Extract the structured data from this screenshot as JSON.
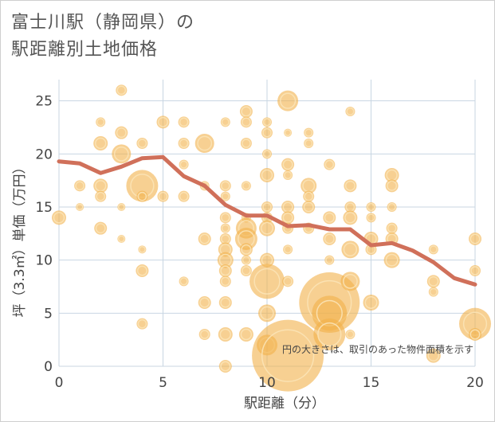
{
  "chart_data": {
    "type": "scatter",
    "title_line1": "富士川駅（静岡県）の",
    "title_line2": "駅距離別土地価格",
    "xlabel": "駅距離（分）",
    "ylabel": "坪（3.3㎡）単価（万円）",
    "note": "円の大きさは、取引のあった物件面積を示す",
    "xlim": [
      0,
      20
    ],
    "ylim": [
      0,
      27
    ],
    "xticks": [
      0,
      5,
      10,
      15,
      20
    ],
    "yticks": [
      0,
      5,
      10,
      15,
      20,
      25
    ],
    "grid": true,
    "colors": {
      "bubble": "#f2b04a",
      "line": "#d0705a",
      "grid": "#c8d6e2"
    },
    "bubbles": [
      {
        "x": 0,
        "y": 14,
        "s": 9
      },
      {
        "x": 1,
        "y": 17,
        "s": 7
      },
      {
        "x": 1,
        "y": 15,
        "s": 5
      },
      {
        "x": 2,
        "y": 23,
        "s": 6
      },
      {
        "x": 2,
        "y": 21,
        "s": 9
      },
      {
        "x": 2,
        "y": 17,
        "s": 9
      },
      {
        "x": 2,
        "y": 16,
        "s": 7
      },
      {
        "x": 2,
        "y": 13,
        "s": 8
      },
      {
        "x": 3,
        "y": 26,
        "s": 7
      },
      {
        "x": 3,
        "y": 22,
        "s": 8
      },
      {
        "x": 3,
        "y": 20,
        "s": 12
      },
      {
        "x": 3,
        "y": 15,
        "s": 5
      },
      {
        "x": 3,
        "y": 12,
        "s": 5
      },
      {
        "x": 4,
        "y": 21,
        "s": 7
      },
      {
        "x": 4,
        "y": 17,
        "s": 20
      },
      {
        "x": 4,
        "y": 16,
        "s": 7
      },
      {
        "x": 4,
        "y": 11,
        "s": 5
      },
      {
        "x": 4,
        "y": 9,
        "s": 8
      },
      {
        "x": 4,
        "y": 4,
        "s": 7
      },
      {
        "x": 5,
        "y": 23,
        "s": 8
      },
      {
        "x": 5,
        "y": 16,
        "s": 7
      },
      {
        "x": 6,
        "y": 23,
        "s": 7
      },
      {
        "x": 6,
        "y": 21,
        "s": 7
      },
      {
        "x": 6,
        "y": 19,
        "s": 6
      },
      {
        "x": 6,
        "y": 16,
        "s": 7
      },
      {
        "x": 6,
        "y": 8,
        "s": 6
      },
      {
        "x": 7,
        "y": 21,
        "s": 12
      },
      {
        "x": 7,
        "y": 17,
        "s": 6
      },
      {
        "x": 7,
        "y": 12,
        "s": 8
      },
      {
        "x": 7,
        "y": 6,
        "s": 8
      },
      {
        "x": 7,
        "y": 3,
        "s": 7
      },
      {
        "x": 8,
        "y": 23,
        "s": 6
      },
      {
        "x": 8,
        "y": 17,
        "s": 7
      },
      {
        "x": 8,
        "y": 16,
        "s": 6
      },
      {
        "x": 8,
        "y": 14,
        "s": 7
      },
      {
        "x": 8,
        "y": 13,
        "s": 6
      },
      {
        "x": 8,
        "y": 12,
        "s": 7
      },
      {
        "x": 8,
        "y": 11,
        "s": 9
      },
      {
        "x": 8,
        "y": 10,
        "s": 10
      },
      {
        "x": 8,
        "y": 9,
        "s": 8
      },
      {
        "x": 8,
        "y": 8,
        "s": 7
      },
      {
        "x": 8,
        "y": 6,
        "s": 8
      },
      {
        "x": 8,
        "y": 3,
        "s": 9
      },
      {
        "x": 8,
        "y": 0,
        "s": 8
      },
      {
        "x": 9,
        "y": 24,
        "s": 8
      },
      {
        "x": 9,
        "y": 23,
        "s": 7
      },
      {
        "x": 9,
        "y": 21,
        "s": 7
      },
      {
        "x": 9,
        "y": 17,
        "s": 6
      },
      {
        "x": 9,
        "y": 14,
        "s": 6
      },
      {
        "x": 9,
        "y": 13,
        "s": 13
      },
      {
        "x": 9,
        "y": 12,
        "s": 14
      },
      {
        "x": 9,
        "y": 11,
        "s": 8
      },
      {
        "x": 9,
        "y": 10,
        "s": 6
      },
      {
        "x": 9,
        "y": 9,
        "s": 7
      },
      {
        "x": 9,
        "y": 3,
        "s": 9
      },
      {
        "x": 10,
        "y": 23,
        "s": 6
      },
      {
        "x": 10,
        "y": 22,
        "s": 7
      },
      {
        "x": 10,
        "y": 20,
        "s": 6
      },
      {
        "x": 10,
        "y": 18,
        "s": 9
      },
      {
        "x": 10,
        "y": 15,
        "s": 7
      },
      {
        "x": 10,
        "y": 14,
        "s": 7
      },
      {
        "x": 10,
        "y": 13,
        "s": 10
      },
      {
        "x": 10,
        "y": 10,
        "s": 9
      },
      {
        "x": 10,
        "y": 8,
        "s": 22
      },
      {
        "x": 10,
        "y": 5,
        "s": 11
      },
      {
        "x": 10,
        "y": 2,
        "s": 13
      },
      {
        "x": 11,
        "y": 25,
        "s": 13
      },
      {
        "x": 11,
        "y": 22,
        "s": 5
      },
      {
        "x": 11,
        "y": 19,
        "s": 8
      },
      {
        "x": 11,
        "y": 18,
        "s": 6
      },
      {
        "x": 11,
        "y": 15,
        "s": 8
      },
      {
        "x": 11,
        "y": 14,
        "s": 8
      },
      {
        "x": 11,
        "y": 13,
        "s": 7
      },
      {
        "x": 11,
        "y": 11,
        "s": 6
      },
      {
        "x": 11,
        "y": 8,
        "s": 7
      },
      {
        "x": 11,
        "y": 1,
        "s": 45
      },
      {
        "x": 12,
        "y": 22,
        "s": 6
      },
      {
        "x": 12,
        "y": 21,
        "s": 6
      },
      {
        "x": 12,
        "y": 17,
        "s": 10
      },
      {
        "x": 12,
        "y": 16,
        "s": 7
      },
      {
        "x": 12,
        "y": 15,
        "s": 8
      },
      {
        "x": 12,
        "y": 13,
        "s": 7
      },
      {
        "x": 13,
        "y": 19,
        "s": 7
      },
      {
        "x": 13,
        "y": 14,
        "s": 8
      },
      {
        "x": 13,
        "y": 12,
        "s": 8
      },
      {
        "x": 13,
        "y": 10,
        "s": 6
      },
      {
        "x": 13,
        "y": 6,
        "s": 38
      },
      {
        "x": 13,
        "y": 5,
        "s": 22
      },
      {
        "x": 13,
        "y": 3,
        "s": 20
      },
      {
        "x": 14,
        "y": 24,
        "s": 6
      },
      {
        "x": 14,
        "y": 17,
        "s": 8
      },
      {
        "x": 14,
        "y": 15,
        "s": 7
      },
      {
        "x": 14,
        "y": 14,
        "s": 9
      },
      {
        "x": 14,
        "y": 11,
        "s": 11
      },
      {
        "x": 14,
        "y": 8,
        "s": 12
      },
      {
        "x": 14,
        "y": 3,
        "s": 6
      },
      {
        "x": 15,
        "y": 15,
        "s": 6
      },
      {
        "x": 15,
        "y": 14,
        "s": 6
      },
      {
        "x": 15,
        "y": 12,
        "s": 9
      },
      {
        "x": 15,
        "y": 11,
        "s": 7
      },
      {
        "x": 15,
        "y": 6,
        "s": 10
      },
      {
        "x": 16,
        "y": 18,
        "s": 9
      },
      {
        "x": 16,
        "y": 17,
        "s": 8
      },
      {
        "x": 16,
        "y": 15,
        "s": 6
      },
      {
        "x": 16,
        "y": 13,
        "s": 7
      },
      {
        "x": 16,
        "y": 12,
        "s": 8
      },
      {
        "x": 16,
        "y": 10,
        "s": 10
      },
      {
        "x": 18,
        "y": 11,
        "s": 6
      },
      {
        "x": 18,
        "y": 8,
        "s": 8
      },
      {
        "x": 18,
        "y": 7,
        "s": 6
      },
      {
        "x": 18,
        "y": 1,
        "s": 9
      },
      {
        "x": 20,
        "y": 12,
        "s": 8
      },
      {
        "x": 20,
        "y": 9,
        "s": 7
      },
      {
        "x": 20,
        "y": 4,
        "s": 20
      },
      {
        "x": 20,
        "y": 3,
        "s": 8
      }
    ],
    "series": [
      {
        "x": [
          0,
          1,
          2,
          3,
          4,
          5,
          6,
          7,
          8,
          9,
          10,
          11,
          12,
          13,
          14,
          15,
          16,
          17,
          18,
          19,
          20
        ],
        "values": [
          19.3,
          19.1,
          18.2,
          18.8,
          19.6,
          19.7,
          17.9,
          17.0,
          15.2,
          14.2,
          14.2,
          13.2,
          13.3,
          12.9,
          12.9,
          11.4,
          11.6,
          10.9,
          9.8,
          8.3,
          7.7
        ]
      }
    ]
  }
}
